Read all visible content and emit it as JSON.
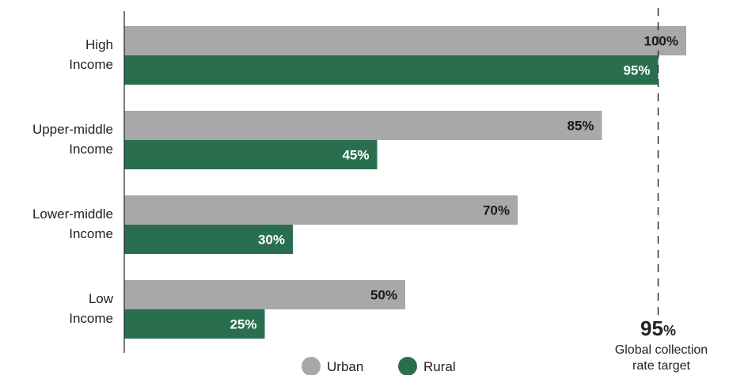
{
  "chart_data": {
    "type": "bar",
    "orientation": "horizontal",
    "categories": [
      [
        "High",
        "Income"
      ],
      [
        "Upper-middle",
        "Income"
      ],
      [
        "Lower-middle",
        "Income"
      ],
      [
        "Low",
        "Income"
      ]
    ],
    "series": [
      {
        "name": "Urban",
        "color": "#a7a8aa",
        "label_color": "#1a1a1a",
        "values": [
          100,
          85,
          70,
          50
        ]
      },
      {
        "name": "Rural",
        "color": "#2a6e50",
        "label_color": "#ffffff",
        "values": [
          95,
          45,
          30,
          25
        ]
      }
    ],
    "value_suffix": "%",
    "xlim": [
      0,
      100
    ],
    "grid": false,
    "legend": "bottom-center",
    "reference_line": {
      "value": 95,
      "value_text": "95",
      "suffix": "%",
      "label_lines": [
        "Global collection",
        "rate target"
      ]
    }
  }
}
